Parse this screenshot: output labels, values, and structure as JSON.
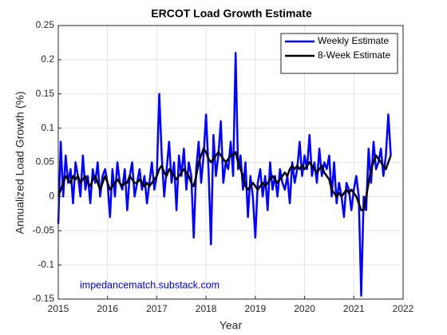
{
  "chart_data": {
    "type": "line",
    "title": "ERCOT Load Growth Estimate",
    "xlabel": "Year",
    "ylabel": "Annualized Load Growth (%)",
    "annotation": "impedancematch.substack.com",
    "xlim": [
      2015,
      2022
    ],
    "xticks": [
      2015,
      2016,
      2017,
      2018,
      2019,
      2020,
      2021,
      2022
    ],
    "ylim": [
      -0.15,
      0.25
    ],
    "yticks": [
      -0.15,
      -0.1,
      -0.05,
      0,
      0.05,
      0.1,
      0.15,
      0.2,
      0.25
    ],
    "grid": true,
    "legend": "northeast",
    "x": [
      2015,
      2015.05,
      2015.1,
      2015.15,
      2015.2,
      2015.25,
      2015.3,
      2015.35,
      2015.4,
      2015.45,
      2015.5,
      2015.55,
      2015.6,
      2015.65,
      2015.7,
      2015.75,
      2015.8,
      2015.85,
      2015.9,
      2015.95,
      2016,
      2016.05,
      2016.1,
      2016.15,
      2016.2,
      2016.25,
      2016.3,
      2016.35,
      2016.4,
      2016.45,
      2016.5,
      2016.55,
      2016.6,
      2016.65,
      2016.7,
      2016.75,
      2016.8,
      2016.85,
      2016.9,
      2016.95,
      2017,
      2017.05,
      2017.1,
      2017.15,
      2017.2,
      2017.25,
      2017.3,
      2017.35,
      2017.4,
      2017.45,
      2017.5,
      2017.55,
      2017.6,
      2017.65,
      2017.7,
      2017.75,
      2017.8,
      2017.85,
      2017.9,
      2017.95,
      2018,
      2018.05,
      2018.1,
      2018.15,
      2018.2,
      2018.25,
      2018.3,
      2018.35,
      2018.4,
      2018.45,
      2018.5,
      2018.55,
      2018.6,
      2018.65,
      2018.7,
      2018.75,
      2018.8,
      2018.85,
      2018.9,
      2018.95,
      2019,
      2019.05,
      2019.1,
      2019.15,
      2019.2,
      2019.25,
      2019.3,
      2019.35,
      2019.4,
      2019.45,
      2019.5,
      2019.55,
      2019.6,
      2019.65,
      2019.7,
      2019.75,
      2019.8,
      2019.85,
      2019.9,
      2019.95,
      2020,
      2020.05,
      2020.1,
      2020.15,
      2020.2,
      2020.25,
      2020.3,
      2020.35,
      2020.4,
      2020.45,
      2020.5,
      2020.55,
      2020.6,
      2020.65,
      2020.7,
      2020.75,
      2020.8,
      2020.85,
      2020.9,
      2020.95,
      2021,
      2021.05,
      2021.1,
      2021.15,
      2021.2,
      2021.25,
      2021.3,
      2021.35,
      2021.4,
      2021.45,
      2021.5,
      2021.55,
      2021.6,
      2021.65,
      2021.7,
      2021.75
    ],
    "series": [
      {
        "name": "Weekly Estimate",
        "color": "#0000ff",
        "width": 2.5,
        "values": [
          -0.04,
          0.08,
          0.0,
          0.06,
          0.02,
          0.04,
          -0.01,
          0.05,
          0.03,
          0.0,
          0.06,
          0.01,
          0.03,
          -0.01,
          0.04,
          0.02,
          0.05,
          0.0,
          0.03,
          0.04,
          0.02,
          -0.03,
          0.04,
          0.0,
          0.05,
          0.02,
          0.01,
          0.04,
          -0.02,
          0.03,
          0.05,
          0.0,
          0.02,
          0.04,
          0.01,
          0.03,
          -0.01,
          0.02,
          0.05,
          0.01,
          0.03,
          0.15,
          0.06,
          0.0,
          0.04,
          0.08,
          0.02,
          0.05,
          -0.02,
          0.06,
          0.03,
          0.07,
          0.01,
          0.05,
          0.03,
          -0.06,
          0.04,
          0.08,
          0.02,
          0.06,
          0.12,
          0.04,
          -0.07,
          0.09,
          0.03,
          0.06,
          0.11,
          0.02,
          0.05,
          0.04,
          0.08,
          0.03,
          0.21,
          0.04,
          0.06,
          0.01,
          0.05,
          -0.03,
          0.03,
          0.0,
          -0.06,
          0.02,
          0.04,
          0.0,
          0.03,
          -0.02,
          0.05,
          0.01,
          0.03,
          0.0,
          0.04,
          0.02,
          0.01,
          0.03,
          -0.01,
          0.05,
          0.02,
          0.04,
          0.08,
          0.03,
          0.06,
          0.04,
          0.09,
          0.03,
          0.05,
          0.02,
          0.07,
          0.03,
          0.05,
          0.04,
          0.06,
          0.0,
          0.05,
          -0.01,
          0.02,
          0.0,
          -0.03,
          0.02,
          0.01,
          -0.02,
          0.01,
          0.03,
          0.0,
          -0.145,
          0.0,
          -0.02,
          0.07,
          0.02,
          0.08,
          0.04,
          0.05,
          0.07,
          0.03,
          0.06,
          0.12,
          0.06
        ]
      },
      {
        "name": "8-Week Estimate",
        "color": "#000000",
        "width": 2.5,
        "values": [
          0.0,
          0.01,
          0.02,
          0.03,
          0.025,
          0.02,
          0.03,
          0.025,
          0.03,
          0.02,
          0.025,
          0.03,
          0.02,
          0.015,
          0.025,
          0.03,
          0.02,
          0.01,
          0.02,
          0.03,
          0.02,
          0.01,
          0.015,
          0.02,
          0.025,
          0.02,
          0.015,
          0.02,
          0.02,
          0.03,
          0.025,
          0.02,
          0.02,
          0.025,
          0.02,
          0.015,
          0.02,
          0.015,
          0.02,
          0.025,
          0.03,
          0.04,
          0.045,
          0.035,
          0.03,
          0.04,
          0.035,
          0.03,
          0.025,
          0.03,
          0.035,
          0.04,
          0.035,
          0.03,
          0.02,
          0.015,
          0.03,
          0.05,
          0.06,
          0.07,
          0.065,
          0.055,
          0.05,
          0.055,
          0.06,
          0.065,
          0.06,
          0.055,
          0.05,
          0.055,
          0.06,
          0.06,
          0.065,
          0.05,
          0.04,
          0.03,
          0.015,
          0.01,
          0.015,
          0.02,
          0.015,
          0.01,
          0.015,
          0.02,
          0.015,
          0.02,
          0.025,
          0.03,
          0.025,
          0.02,
          0.025,
          0.03,
          0.035,
          0.03,
          0.04,
          0.045,
          0.04,
          0.045,
          0.04,
          0.045,
          0.04,
          0.045,
          0.05,
          0.045,
          0.04,
          0.035,
          0.04,
          0.045,
          0.035,
          0.03,
          0.025,
          0.01,
          0.005,
          0.0,
          0.005,
          0.0,
          0.005,
          0.01,
          0.005,
          0.01,
          0.005,
          0.0,
          -0.01,
          -0.02,
          -0.02,
          0.0,
          0.02,
          0.04,
          0.05,
          0.06,
          0.055,
          0.05,
          0.045,
          0.04,
          0.05,
          0.06
        ]
      }
    ]
  }
}
